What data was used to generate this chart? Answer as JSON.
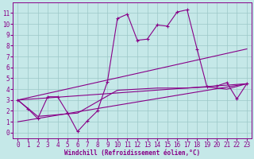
{
  "background_color": "#c5e8e8",
  "grid_color": "#9cc8c8",
  "line_color": "#880088",
  "xlabel": "Windchill (Refroidissement éolien,°C)",
  "xlabel_fontsize": 5.5,
  "tick_fontsize": 5.5,
  "xlim": [
    -0.5,
    23.5
  ],
  "ylim": [
    -0.5,
    12.0
  ],
  "xticks": [
    0,
    1,
    2,
    3,
    4,
    5,
    6,
    7,
    8,
    9,
    10,
    11,
    12,
    13,
    14,
    15,
    16,
    17,
    18,
    19,
    20,
    21,
    22,
    23
  ],
  "yticks": [
    0,
    1,
    2,
    3,
    4,
    5,
    6,
    7,
    8,
    9,
    10,
    11
  ],
  "line1_x": [
    0,
    1,
    2,
    3,
    4,
    5,
    6,
    7,
    8,
    9,
    10,
    11,
    12,
    13,
    14,
    15,
    16,
    17,
    18,
    19,
    20,
    21,
    22,
    23
  ],
  "line1_y": [
    3.0,
    2.2,
    1.3,
    3.3,
    3.3,
    1.8,
    0.1,
    1.1,
    2.0,
    4.7,
    10.5,
    10.9,
    8.5,
    8.6,
    9.9,
    9.8,
    11.1,
    11.3,
    7.7,
    4.2,
    4.3,
    4.6,
    3.1,
    4.5
  ],
  "line2_x": [
    0,
    23
  ],
  "line2_y": [
    3.0,
    7.7
  ],
  "line3_x": [
    0,
    23
  ],
  "line3_y": [
    1.0,
    4.5
  ],
  "line4_x": [
    0,
    23
  ],
  "line4_y": [
    3.0,
    4.5
  ],
  "line5_x": [
    0,
    2,
    6,
    10,
    14,
    17,
    19,
    21,
    23
  ],
  "line5_y": [
    3.0,
    1.5,
    1.8,
    3.9,
    4.1,
    4.1,
    4.2,
    4.0,
    4.5
  ]
}
